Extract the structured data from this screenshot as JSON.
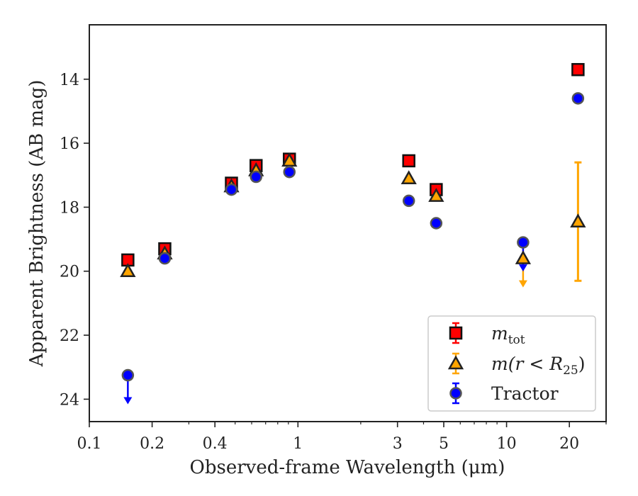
{
  "chart_data": {
    "type": "scatter",
    "xlabel": "Observed-frame Wavelength (μm)",
    "ylabel": "Apparent Brightness (AB mag)",
    "xscale": "log",
    "xlim": [
      0.1,
      30
    ],
    "ylim": [
      24.7,
      12.3
    ],
    "y_inverted": true,
    "xticks": [
      0.1,
      0.2,
      0.4,
      1,
      3,
      5,
      10,
      20
    ],
    "xtick_labels": [
      "0.1",
      "0.2",
      "0.4",
      "1",
      "3",
      "5",
      "10",
      "20"
    ],
    "yticks": [
      14,
      16,
      18,
      20,
      22,
      24
    ],
    "ytick_labels": [
      "14",
      "16",
      "18",
      "20",
      "22",
      "24"
    ],
    "grid": false,
    "legend_position": "lower-right",
    "series": [
      {
        "name": "m_tot",
        "legend_main": "m",
        "legend_sub": "tot",
        "marker": "square",
        "color": "#ff0000",
        "points": [
          {
            "x": 0.153,
            "y": 19.65
          },
          {
            "x": 0.23,
            "y": 19.3
          },
          {
            "x": 0.48,
            "y": 17.25
          },
          {
            "x": 0.63,
            "y": 16.7
          },
          {
            "x": 0.91,
            "y": 16.5
          },
          {
            "x": 3.4,
            "y": 16.55
          },
          {
            "x": 4.6,
            "y": 17.45
          },
          {
            "x": 22,
            "y": 13.7
          }
        ]
      },
      {
        "name": "m(r < R25)",
        "legend_main": "m(r < R",
        "legend_sub": "25",
        "legend_tail": ")",
        "marker": "triangle",
        "color": "#ffa500",
        "points": [
          {
            "x": 0.153,
            "y": 20.0
          },
          {
            "x": 0.23,
            "y": 19.45
          },
          {
            "x": 0.48,
            "y": 17.35
          },
          {
            "x": 0.63,
            "y": 16.85
          },
          {
            "x": 0.91,
            "y": 16.55
          },
          {
            "x": 3.4,
            "y": 17.1
          },
          {
            "x": 4.6,
            "y": 17.65
          },
          {
            "x": 12,
            "y": 19.6,
            "upper_limit": true
          },
          {
            "x": 22,
            "y": 18.45,
            "yerr": 1.85
          }
        ]
      },
      {
        "name": "Tractor",
        "marker": "circle",
        "color": "#0000ff",
        "points": [
          {
            "x": 0.153,
            "y": 23.25,
            "upper_limit": true
          },
          {
            "x": 0.23,
            "y": 19.6
          },
          {
            "x": 0.48,
            "y": 17.45
          },
          {
            "x": 0.63,
            "y": 17.05
          },
          {
            "x": 0.91,
            "y": 16.9
          },
          {
            "x": 3.4,
            "y": 17.8
          },
          {
            "x": 4.6,
            "y": 18.5
          },
          {
            "x": 12,
            "y": 19.1,
            "upper_limit": true
          },
          {
            "x": 22,
            "y": 14.6
          }
        ]
      }
    ]
  }
}
